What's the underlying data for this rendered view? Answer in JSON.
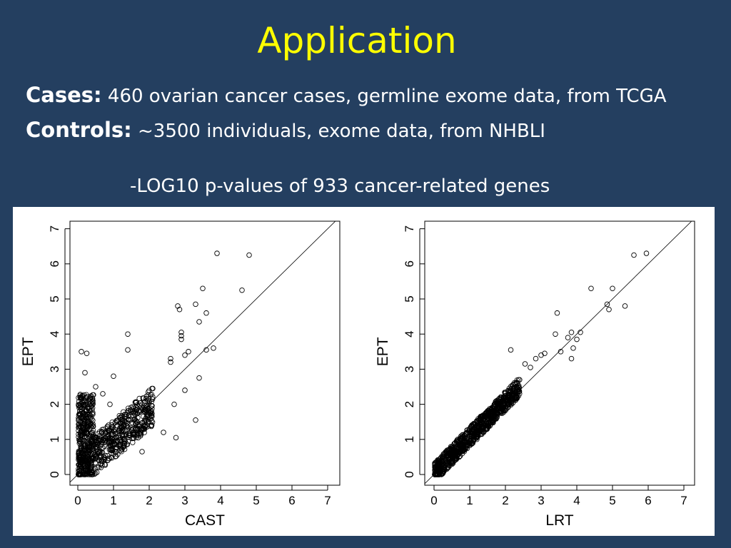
{
  "slide": {
    "title": "Application",
    "cases_label": "Cases:",
    "cases_text": "460 ovarian cancer cases, germline exome data, from TCGA",
    "controls_label": "Controls:",
    "controls_text": "~3500 individuals, exome data, from NHBLI",
    "subtitle": "-LOG10 p-values of 933 cancer-related genes"
  },
  "colors": {
    "background": "#243f60",
    "title": "#ffff00",
    "text": "#ffffff",
    "panel": "#ffffff"
  },
  "chart_data": [
    {
      "type": "scatter",
      "xlabel": "CAST",
      "ylabel": "EPT",
      "xlim": [
        0,
        7
      ],
      "ylim": [
        0,
        7
      ],
      "xticks": [
        0,
        1,
        2,
        3,
        4,
        5,
        6,
        7
      ],
      "yticks": [
        0,
        1,
        2,
        3,
        4,
        5,
        6,
        7
      ],
      "reference_line": "y = x",
      "points": [
        [
          3.9,
          6.3
        ],
        [
          4.8,
          6.25
        ],
        [
          3.5,
          5.3
        ],
        [
          4.6,
          5.25
        ],
        [
          3.3,
          4.85
        ],
        [
          3.6,
          4.6
        ],
        [
          2.8,
          4.8
        ],
        [
          2.85,
          4.7
        ],
        [
          3.4,
          4.35
        ],
        [
          1.4,
          4.0
        ],
        [
          2.9,
          4.05
        ],
        [
          2.9,
          3.95
        ],
        [
          2.9,
          3.85
        ],
        [
          3.6,
          3.55
        ],
        [
          3.8,
          3.6
        ],
        [
          0.1,
          3.5
        ],
        [
          0.25,
          3.45
        ],
        [
          1.4,
          3.55
        ],
        [
          3.0,
          3.4
        ],
        [
          3.1,
          3.5
        ],
        [
          2.6,
          3.3
        ],
        [
          2.6,
          3.2
        ],
        [
          0.2,
          2.9
        ],
        [
          3.4,
          2.75
        ],
        [
          3.3,
          1.55
        ],
        [
          2.75,
          1.05
        ],
        [
          0.5,
          2.5
        ],
        [
          0.7,
          2.3
        ],
        [
          1.0,
          2.8
        ],
        [
          0.9,
          2.0
        ],
        [
          1.8,
          0.65
        ],
        [
          2.4,
          1.2
        ],
        [
          3.0,
          2.4
        ],
        [
          2.7,
          2.0
        ]
      ],
      "cluster": {
        "x": [
          0,
          2.2
        ],
        "y": [
          0,
          2.8
        ],
        "n_points": 933
      }
    },
    {
      "type": "scatter",
      "xlabel": "LRT",
      "ylabel": "EPT",
      "xlim": [
        0,
        7
      ],
      "ylim": [
        0,
        7
      ],
      "xticks": [
        0,
        1,
        2,
        3,
        4,
        5,
        6,
        7
      ],
      "yticks": [
        0,
        1,
        2,
        3,
        4,
        5,
        6,
        7
      ],
      "reference_line": "y = x",
      "points": [
        [
          5.6,
          6.25
        ],
        [
          5.95,
          6.3
        ],
        [
          4.4,
          5.3
        ],
        [
          5.0,
          5.3
        ],
        [
          4.85,
          4.85
        ],
        [
          4.9,
          4.7
        ],
        [
          5.35,
          4.8
        ],
        [
          3.45,
          4.6
        ],
        [
          4.1,
          4.05
        ],
        [
          3.75,
          3.9
        ],
        [
          3.4,
          4.0
        ],
        [
          3.85,
          4.05
        ],
        [
          3.55,
          3.5
        ],
        [
          3.9,
          3.6
        ],
        [
          3.1,
          3.45
        ],
        [
          3.0,
          3.4
        ],
        [
          2.85,
          3.3
        ],
        [
          2.55,
          3.15
        ],
        [
          2.15,
          3.55
        ],
        [
          2.7,
          3.05
        ],
        [
          3.85,
          3.3
        ],
        [
          4.0,
          3.85
        ]
      ],
      "cluster": {
        "x": [
          0,
          2.6
        ],
        "y": [
          0,
          2.7
        ],
        "n_points": 933
      }
    }
  ]
}
